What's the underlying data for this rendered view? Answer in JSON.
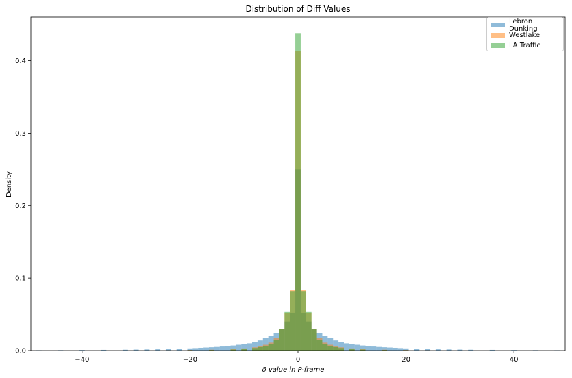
{
  "chart_data": {
    "type": "bar",
    "title": "Distribution of Diff Values",
    "xlabel": "δ value in P-frame",
    "ylabel": "Density",
    "xlim": [
      -49.5,
      49.5
    ],
    "ylim": [
      0,
      0.46
    ],
    "xticks": [
      -40,
      -20,
      0,
      20,
      40
    ],
    "yticks": [
      0.0,
      0.1,
      0.2,
      0.3,
      0.4
    ],
    "xtick_labels": [
      "−40",
      "−20",
      "0",
      "20",
      "40"
    ],
    "ytick_labels": [
      "0.0",
      "0.1",
      "0.2",
      "0.3",
      "0.4"
    ],
    "legend_position": "top-right",
    "grid": false,
    "bin_width": 1,
    "series": [
      {
        "name": "Lebron Dunking",
        "color": "#1f77b4",
        "x": [
          -48,
          -44,
          -40,
          -36,
          -32,
          -30,
          -28,
          -26,
          -24,
          -22,
          -20,
          -19,
          -18,
          -17,
          -16,
          -15,
          -14,
          -13,
          -12,
          -11,
          -10,
          -9,
          -8,
          -7,
          -6,
          -5,
          -4,
          -3,
          -2,
          -1,
          0,
          1,
          2,
          3,
          4,
          5,
          6,
          7,
          8,
          9,
          10,
          11,
          12,
          13,
          14,
          15,
          16,
          17,
          18,
          19,
          20,
          22,
          24,
          26,
          28,
          30,
          32,
          36,
          40,
          44,
          48
        ],
        "values": [
          0.0005,
          0.0006,
          0.0008,
          0.001,
          0.0012,
          0.0014,
          0.0016,
          0.0018,
          0.002,
          0.0024,
          0.003,
          0.0034,
          0.0038,
          0.0042,
          0.0046,
          0.005,
          0.0056,
          0.0062,
          0.007,
          0.008,
          0.009,
          0.01,
          0.012,
          0.014,
          0.017,
          0.02,
          0.024,
          0.03,
          0.04,
          0.052,
          0.25,
          0.052,
          0.04,
          0.03,
          0.024,
          0.02,
          0.017,
          0.014,
          0.012,
          0.01,
          0.009,
          0.008,
          0.007,
          0.0062,
          0.0056,
          0.005,
          0.0046,
          0.0042,
          0.0038,
          0.0034,
          0.003,
          0.0024,
          0.002,
          0.0018,
          0.0016,
          0.0014,
          0.0012,
          0.001,
          0.0008,
          0.0006,
          0.0005
        ]
      },
      {
        "name": "Westlake",
        "color": "#ff7f0e",
        "x": [
          -24,
          -20,
          -16,
          -12,
          -10,
          -8,
          -7,
          -6,
          -5,
          -4,
          -3,
          -2,
          -1,
          0,
          1,
          2,
          3,
          4,
          5,
          6,
          7,
          8,
          10,
          12,
          16,
          20,
          24
        ],
        "values": [
          0.0005,
          0.0008,
          0.0012,
          0.002,
          0.003,
          0.0045,
          0.006,
          0.008,
          0.011,
          0.017,
          0.03,
          0.052,
          0.084,
          0.413,
          0.084,
          0.052,
          0.03,
          0.017,
          0.011,
          0.008,
          0.006,
          0.0045,
          0.003,
          0.002,
          0.0012,
          0.0008,
          0.0005
        ]
      },
      {
        "name": "LA Traffic",
        "color": "#2ca02c",
        "x": [
          -20,
          -16,
          -12,
          -10,
          -8,
          -7,
          -6,
          -5,
          -4,
          -3,
          -2,
          -1,
          0,
          1,
          2,
          3,
          4,
          5,
          6,
          7,
          8,
          10,
          12,
          16,
          20
        ],
        "values": [
          0.0005,
          0.0008,
          0.0014,
          0.0022,
          0.0035,
          0.0048,
          0.0065,
          0.009,
          0.015,
          0.03,
          0.054,
          0.082,
          0.438,
          0.082,
          0.054,
          0.03,
          0.015,
          0.009,
          0.0065,
          0.0048,
          0.0035,
          0.0022,
          0.0014,
          0.0008,
          0.0005
        ]
      }
    ]
  }
}
